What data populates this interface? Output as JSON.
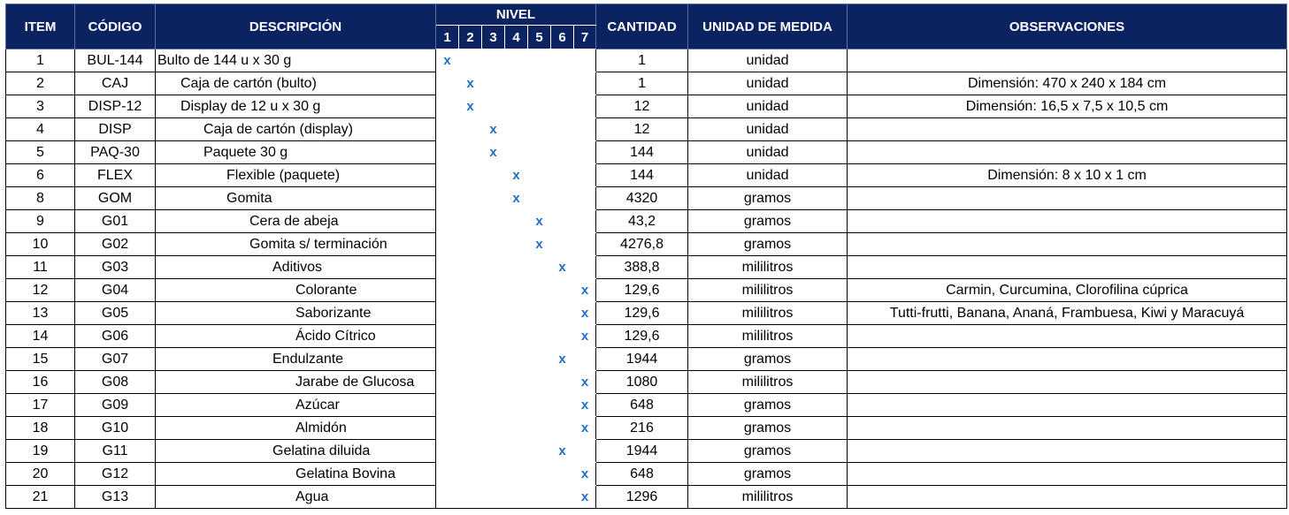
{
  "headers": {
    "item": "ITEM",
    "codigo": "CÓDIGO",
    "descripcion": "DESCRIPCIÓN",
    "nivel": "NIVEL",
    "levels": [
      "1",
      "2",
      "3",
      "4",
      "5",
      "6",
      "7"
    ],
    "cantidad": "CANTIDAD",
    "unidad": "UNIDAD DE MEDIDA",
    "observaciones": "OBSERVACIONES"
  },
  "marker": "x",
  "rows": [
    {
      "item": "1",
      "codigo": "BUL-144",
      "descripcion": "Bulto de 144 u x 30 g",
      "nivel": 1,
      "cantidad": "1",
      "unidad": "unidad",
      "observaciones": ""
    },
    {
      "item": "2",
      "codigo": "CAJ",
      "descripcion": "Caja de cartón (bulto)",
      "nivel": 2,
      "cantidad": "1",
      "unidad": "unidad",
      "observaciones": "Dimensión: 470 x 240 x 184 cm"
    },
    {
      "item": "3",
      "codigo": "DISP-12",
      "descripcion": "Display de 12 u x 30 g",
      "nivel": 2,
      "cantidad": "12",
      "unidad": "unidad",
      "observaciones": "Dimensión: 16,5 x 7,5 x 10,5 cm"
    },
    {
      "item": "4",
      "codigo": "DISP",
      "descripcion": "Caja de cartón (display)",
      "nivel": 3,
      "cantidad": "12",
      "unidad": "unidad",
      "observaciones": ""
    },
    {
      "item": "5",
      "codigo": "PAQ-30",
      "descripcion": "Paquete 30 g",
      "nivel": 3,
      "cantidad": "144",
      "unidad": "unidad",
      "observaciones": ""
    },
    {
      "item": "6",
      "codigo": "FLEX",
      "descripcion": "Flexible (paquete)",
      "nivel": 4,
      "cantidad": "144",
      "unidad": "unidad",
      "observaciones": "Dimensión: 8 x 10 x 1 cm"
    },
    {
      "item": "8",
      "codigo": "GOM",
      "descripcion": "Gomita",
      "nivel": 4,
      "cantidad": "4320",
      "unidad": "gramos",
      "observaciones": ""
    },
    {
      "item": "9",
      "codigo": "G01",
      "descripcion": "Cera de abeja",
      "nivel": 5,
      "cantidad": "43,2",
      "unidad": "gramos",
      "observaciones": ""
    },
    {
      "item": "10",
      "codigo": "G02",
      "descripcion": "Gomita s/ terminación",
      "nivel": 5,
      "cantidad": "4276,8",
      "unidad": "gramos",
      "observaciones": ""
    },
    {
      "item": "11",
      "codigo": "G03",
      "descripcion": "Aditivos",
      "nivel": 6,
      "cantidad": "388,8",
      "unidad": "mililitros",
      "observaciones": ""
    },
    {
      "item": "12",
      "codigo": "G04",
      "descripcion": "Colorante",
      "nivel": 7,
      "cantidad": "129,6",
      "unidad": "mililitros",
      "observaciones": "Carmin, Curcumina, Clorofilina cúprica"
    },
    {
      "item": "13",
      "codigo": "G05",
      "descripcion": "Saborizante",
      "nivel": 7,
      "cantidad": "129,6",
      "unidad": "mililitros",
      "observaciones": "Tutti-frutti, Banana, Ananá, Frambuesa, Kiwi y Maracuyá"
    },
    {
      "item": "14",
      "codigo": "G06",
      "descripcion": "Ácido Cítrico",
      "nivel": 7,
      "cantidad": "129,6",
      "unidad": "mililitros",
      "observaciones": ""
    },
    {
      "item": "15",
      "codigo": "G07",
      "descripcion": "Endulzante",
      "nivel": 6,
      "cantidad": "1944",
      "unidad": "gramos",
      "observaciones": ""
    },
    {
      "item": "16",
      "codigo": "G08",
      "descripcion": "Jarabe de Glucosa",
      "nivel": 7,
      "cantidad": "1080",
      "unidad": "mililitros",
      "observaciones": ""
    },
    {
      "item": "17",
      "codigo": "G09",
      "descripcion": "Azúcar",
      "nivel": 7,
      "cantidad": "648",
      "unidad": "gramos",
      "observaciones": ""
    },
    {
      "item": "18",
      "codigo": "G10",
      "descripcion": "Almidón",
      "nivel": 7,
      "cantidad": "216",
      "unidad": "gramos",
      "observaciones": ""
    },
    {
      "item": "19",
      "codigo": "G11",
      "descripcion": "Gelatina diluida",
      "nivel": 6,
      "cantidad": "1944",
      "unidad": "gramos",
      "observaciones": ""
    },
    {
      "item": "20",
      "codigo": "G12",
      "descripcion": "Gelatina Bovina",
      "nivel": 7,
      "cantidad": "648",
      "unidad": "gramos",
      "observaciones": ""
    },
    {
      "item": "21",
      "codigo": "G13",
      "descripcion": "Agua",
      "nivel": 7,
      "cantidad": "1296",
      "unidad": "mililitros",
      "observaciones": ""
    }
  ]
}
